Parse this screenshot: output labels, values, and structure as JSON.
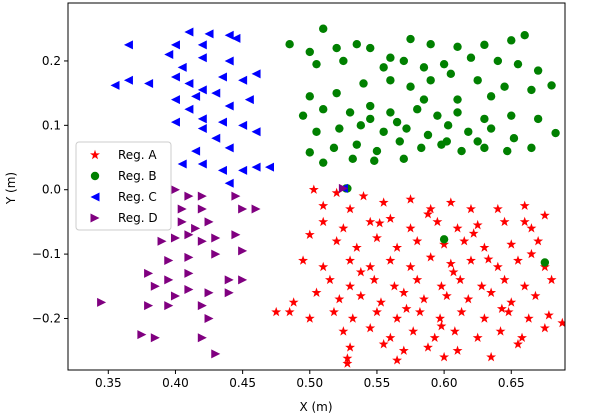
{
  "chart_data": {
    "type": "scatter",
    "title": "",
    "xlabel": "X (m)",
    "ylabel": "Y (m)",
    "xlim": [
      0.32,
      0.69
    ],
    "ylim": [
      -0.28,
      0.29
    ],
    "xticks": [
      0.35,
      0.4,
      0.45,
      0.5,
      0.55,
      0.6,
      0.65
    ],
    "xtick_labels": [
      "0.35",
      "0.40",
      "0.45",
      "0.50",
      "0.55",
      "0.60",
      "0.65"
    ],
    "yticks": [
      -0.2,
      -0.1,
      0.0,
      0.1,
      0.2
    ],
    "ytick_labels": [
      "−0.2",
      "−0.1",
      "0.0",
      "0.1",
      "0.2"
    ],
    "grid": false,
    "legend_position": "center-left",
    "series": [
      {
        "name": "Reg. A",
        "marker": "star",
        "color": "#ff0000",
        "points": [
          [
            0.503,
            0.0
          ],
          [
            0.52,
            -0.005
          ],
          [
            0.54,
            -0.01
          ],
          [
            0.51,
            -0.025
          ],
          [
            0.53,
            -0.03
          ],
          [
            0.555,
            -0.02
          ],
          [
            0.575,
            -0.015
          ],
          [
            0.59,
            -0.03
          ],
          [
            0.605,
            -0.02
          ],
          [
            0.62,
            -0.03
          ],
          [
            0.64,
            -0.03
          ],
          [
            0.66,
            -0.025
          ],
          [
            0.675,
            -0.04
          ],
          [
            0.66,
            -0.05
          ],
          [
            0.51,
            -0.05
          ],
          [
            0.525,
            -0.06
          ],
          [
            0.545,
            -0.05
          ],
          [
            0.56,
            -0.045
          ],
          [
            0.575,
            -0.06
          ],
          [
            0.595,
            -0.05
          ],
          [
            0.61,
            -0.06
          ],
          [
            0.625,
            -0.055
          ],
          [
            0.645,
            -0.05
          ],
          [
            0.665,
            -0.06
          ],
          [
            0.67,
            -0.08
          ],
          [
            0.5,
            -0.07
          ],
          [
            0.52,
            -0.08
          ],
          [
            0.535,
            -0.09
          ],
          [
            0.55,
            -0.075
          ],
          [
            0.565,
            -0.09
          ],
          [
            0.58,
            -0.08
          ],
          [
            0.6,
            -0.085
          ],
          [
            0.615,
            -0.08
          ],
          [
            0.63,
            -0.09
          ],
          [
            0.65,
            -0.085
          ],
          [
            0.665,
            -0.1
          ],
          [
            0.495,
            -0.11
          ],
          [
            0.51,
            -0.12
          ],
          [
            0.53,
            -0.11
          ],
          [
            0.545,
            -0.12
          ],
          [
            0.56,
            -0.11
          ],
          [
            0.575,
            -0.12
          ],
          [
            0.59,
            -0.105
          ],
          [
            0.605,
            -0.115
          ],
          [
            0.62,
            -0.11
          ],
          [
            0.64,
            -0.12
          ],
          [
            0.655,
            -0.11
          ],
          [
            0.675,
            -0.12
          ],
          [
            0.515,
            -0.14
          ],
          [
            0.53,
            -0.15
          ],
          [
            0.548,
            -0.14
          ],
          [
            0.563,
            -0.15
          ],
          [
            0.58,
            -0.14
          ],
          [
            0.598,
            -0.15
          ],
          [
            0.612,
            -0.14
          ],
          [
            0.628,
            -0.15
          ],
          [
            0.645,
            -0.14
          ],
          [
            0.66,
            -0.15
          ],
          [
            0.68,
            -0.14
          ],
          [
            0.505,
            -0.16
          ],
          [
            0.522,
            -0.17
          ],
          [
            0.538,
            -0.165
          ],
          [
            0.553,
            -0.175
          ],
          [
            0.57,
            -0.16
          ],
          [
            0.585,
            -0.17
          ],
          [
            0.602,
            -0.165
          ],
          [
            0.618,
            -0.17
          ],
          [
            0.635,
            -0.16
          ],
          [
            0.65,
            -0.175
          ],
          [
            0.668,
            -0.165
          ],
          [
            0.485,
            -0.19
          ],
          [
            0.5,
            -0.2
          ],
          [
            0.518,
            -0.19
          ],
          [
            0.532,
            -0.2
          ],
          [
            0.55,
            -0.19
          ],
          [
            0.565,
            -0.2
          ],
          [
            0.582,
            -0.19
          ],
          [
            0.597,
            -0.2
          ],
          [
            0.613,
            -0.19
          ],
          [
            0.63,
            -0.2
          ],
          [
            0.648,
            -0.19
          ],
          [
            0.663,
            -0.2
          ],
          [
            0.678,
            -0.195
          ],
          [
            0.525,
            -0.22
          ],
          [
            0.545,
            -0.215
          ],
          [
            0.56,
            -0.23
          ],
          [
            0.577,
            -0.22
          ],
          [
            0.593,
            -0.23
          ],
          [
            0.608,
            -0.22
          ],
          [
            0.625,
            -0.23
          ],
          [
            0.642,
            -0.22
          ],
          [
            0.658,
            -0.23
          ],
          [
            0.675,
            -0.215
          ],
          [
            0.688,
            -0.207
          ],
          [
            0.53,
            -0.245
          ],
          [
            0.555,
            -0.24
          ],
          [
            0.57,
            -0.25
          ],
          [
            0.588,
            -0.245
          ],
          [
            0.61,
            -0.25
          ],
          [
            0.635,
            -0.26
          ],
          [
            0.655,
            -0.24
          ],
          [
            0.528,
            -0.27
          ],
          [
            0.528,
            -0.262
          ],
          [
            0.565,
            -0.265
          ],
          [
            0.6,
            -0.26
          ],
          [
            0.475,
            -0.19
          ],
          [
            0.488,
            -0.175
          ],
          [
            0.552,
            -0.052
          ],
          [
            0.588,
            -0.038
          ],
          [
            0.622,
            -0.068
          ],
          [
            0.607,
            -0.128
          ],
          [
            0.572,
            -0.185
          ],
          [
            0.643,
            -0.185
          ],
          [
            0.598,
            -0.212
          ],
          [
            0.538,
            -0.128
          ],
          [
            0.633,
            -0.108
          ]
        ]
      },
      {
        "name": "Reg. B",
        "marker": "circle",
        "color": "#008000",
        "points": [
          [
            0.51,
            0.25
          ],
          [
            0.485,
            0.226
          ],
          [
            0.5,
            0.214
          ],
          [
            0.52,
            0.22
          ],
          [
            0.535,
            0.226
          ],
          [
            0.545,
            0.22
          ],
          [
            0.56,
            0.205
          ],
          [
            0.575,
            0.234
          ],
          [
            0.59,
            0.226
          ],
          [
            0.61,
            0.222
          ],
          [
            0.63,
            0.225
          ],
          [
            0.65,
            0.232
          ],
          [
            0.66,
            0.24
          ],
          [
            0.505,
            0.195
          ],
          [
            0.525,
            0.2
          ],
          [
            0.555,
            0.19
          ],
          [
            0.57,
            0.2
          ],
          [
            0.585,
            0.19
          ],
          [
            0.6,
            0.195
          ],
          [
            0.62,
            0.205
          ],
          [
            0.64,
            0.2
          ],
          [
            0.655,
            0.195
          ],
          [
            0.67,
            0.185
          ],
          [
            0.5,
            0.145
          ],
          [
            0.52,
            0.15
          ],
          [
            0.54,
            0.165
          ],
          [
            0.56,
            0.17
          ],
          [
            0.575,
            0.16
          ],
          [
            0.59,
            0.17
          ],
          [
            0.605,
            0.18
          ],
          [
            0.625,
            0.17
          ],
          [
            0.645,
            0.16
          ],
          [
            0.665,
            0.155
          ],
          [
            0.68,
            0.162
          ],
          [
            0.495,
            0.115
          ],
          [
            0.51,
            0.125
          ],
          [
            0.53,
            0.12
          ],
          [
            0.545,
            0.13
          ],
          [
            0.56,
            0.12
          ],
          [
            0.58,
            0.125
          ],
          [
            0.595,
            0.115
          ],
          [
            0.61,
            0.12
          ],
          [
            0.63,
            0.11
          ],
          [
            0.65,
            0.115
          ],
          [
            0.67,
            0.11
          ],
          [
            0.505,
            0.09
          ],
          [
            0.522,
            0.095
          ],
          [
            0.538,
            0.1
          ],
          [
            0.555,
            0.09
          ],
          [
            0.572,
            0.095
          ],
          [
            0.588,
            0.085
          ],
          [
            0.603,
            0.1
          ],
          [
            0.618,
            0.09
          ],
          [
            0.635,
            0.095
          ],
          [
            0.652,
            0.08
          ],
          [
            0.683,
            0.088
          ],
          [
            0.5,
            0.058
          ],
          [
            0.518,
            0.065
          ],
          [
            0.535,
            0.07
          ],
          [
            0.55,
            0.06
          ],
          [
            0.567,
            0.075
          ],
          [
            0.583,
            0.065
          ],
          [
            0.598,
            0.07
          ],
          [
            0.613,
            0.06
          ],
          [
            0.63,
            0.065
          ],
          [
            0.647,
            0.06
          ],
          [
            0.665,
            0.065
          ],
          [
            0.51,
            0.042
          ],
          [
            0.532,
            0.048
          ],
          [
            0.548,
            0.045
          ],
          [
            0.57,
            0.048
          ],
          [
            0.602,
            0.075
          ],
          [
            0.625,
            0.075
          ],
          [
            0.545,
            0.11
          ],
          [
            0.565,
            0.105
          ],
          [
            0.585,
            0.14
          ],
          [
            0.61,
            0.14
          ],
          [
            0.635,
            0.145
          ],
          [
            0.527,
            0.002
          ],
          [
            0.528,
            0.002
          ],
          [
            0.6,
            -0.077
          ],
          [
            0.675,
            -0.113
          ]
        ]
      },
      {
        "name": "Reg. C",
        "marker": "triangle-left",
        "color": "#0000ff",
        "points": [
          [
            0.365,
            0.225
          ],
          [
            0.41,
            0.245
          ],
          [
            0.425,
            0.242
          ],
          [
            0.44,
            0.24
          ],
          [
            0.445,
            0.235
          ],
          [
            0.395,
            0.21
          ],
          [
            0.42,
            0.225
          ],
          [
            0.4,
            0.225
          ],
          [
            0.42,
            0.205
          ],
          [
            0.44,
            0.2
          ],
          [
            0.355,
            0.162
          ],
          [
            0.365,
            0.17
          ],
          [
            0.38,
            0.165
          ],
          [
            0.4,
            0.175
          ],
          [
            0.41,
            0.165
          ],
          [
            0.42,
            0.155
          ],
          [
            0.435,
            0.175
          ],
          [
            0.45,
            0.17
          ],
          [
            0.46,
            0.18
          ],
          [
            0.405,
            0.19
          ],
          [
            0.4,
            0.14
          ],
          [
            0.415,
            0.145
          ],
          [
            0.43,
            0.15
          ],
          [
            0.44,
            0.13
          ],
          [
            0.455,
            0.14
          ],
          [
            0.41,
            0.125
          ],
          [
            0.42,
            0.11
          ],
          [
            0.435,
            0.105
          ],
          [
            0.45,
            0.1
          ],
          [
            0.46,
            0.09
          ],
          [
            0.4,
            0.105
          ],
          [
            0.42,
            0.095
          ],
          [
            0.43,
            0.08
          ],
          [
            0.415,
            0.06
          ],
          [
            0.44,
            0.065
          ],
          [
            0.405,
            0.04
          ],
          [
            0.42,
            0.04
          ],
          [
            0.435,
            0.03
          ],
          [
            0.45,
            0.03
          ],
          [
            0.46,
            0.035
          ],
          [
            0.47,
            0.035
          ],
          [
            0.44,
            0.01
          ],
          [
            0.525,
            0.002
          ]
        ]
      },
      {
        "name": "Reg. D",
        "marker": "triangle-right",
        "color": "#800080",
        "points": [
          [
            0.4,
            0.0
          ],
          [
            0.41,
            -0.01
          ],
          [
            0.42,
            -0.01
          ],
          [
            0.445,
            -0.01
          ],
          [
            0.405,
            -0.03
          ],
          [
            0.42,
            -0.03
          ],
          [
            0.45,
            -0.03
          ],
          [
            0.46,
            -0.03
          ],
          [
            0.405,
            -0.05
          ],
          [
            0.415,
            -0.06
          ],
          [
            0.425,
            -0.05
          ],
          [
            0.39,
            -0.08
          ],
          [
            0.4,
            -0.075
          ],
          [
            0.41,
            -0.07
          ],
          [
            0.42,
            -0.08
          ],
          [
            0.43,
            -0.075
          ],
          [
            0.445,
            -0.07
          ],
          [
            0.395,
            -0.11
          ],
          [
            0.41,
            -0.105
          ],
          [
            0.43,
            -0.1
          ],
          [
            0.45,
            -0.095
          ],
          [
            0.38,
            -0.13
          ],
          [
            0.395,
            -0.14
          ],
          [
            0.41,
            -0.13
          ],
          [
            0.44,
            -0.14
          ],
          [
            0.45,
            -0.14
          ],
          [
            0.385,
            -0.15
          ],
          [
            0.4,
            -0.165
          ],
          [
            0.41,
            -0.155
          ],
          [
            0.425,
            -0.16
          ],
          [
            0.44,
            -0.16
          ],
          [
            0.345,
            -0.175
          ],
          [
            0.38,
            -0.18
          ],
          [
            0.395,
            -0.18
          ],
          [
            0.42,
            -0.18
          ],
          [
            0.425,
            -0.2
          ],
          [
            0.375,
            -0.225
          ],
          [
            0.385,
            -0.23
          ],
          [
            0.42,
            -0.23
          ],
          [
            0.43,
            -0.255
          ],
          [
            0.525,
            0.002
          ]
        ]
      }
    ]
  }
}
